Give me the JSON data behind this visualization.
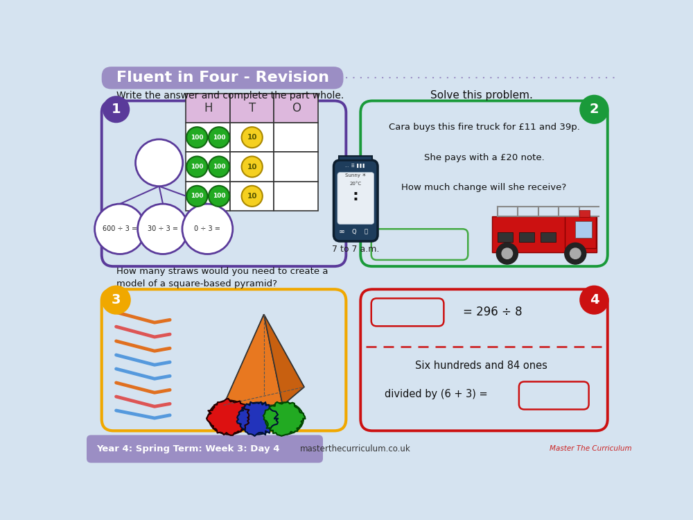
{
  "bg_color": "#d5e3f0",
  "title": "Fluent in Four - Revision",
  "title_bg": "#9b8ec4",
  "title_color": "white",
  "footer_label": "Year 4: Spring Term: Week 3: Day 4",
  "footer_bg": "#9b8ec4",
  "footer_color": "white",
  "website": "masterthecurriculum.co.uk",
  "q1_text": "Write the answer and complete the part whole.",
  "q1_hto_headers": [
    "H",
    "T",
    "O"
  ],
  "q1_bubble1": "600 ÷ 3 =",
  "q1_bubble2": "30 ÷ 3 =",
  "q1_bubble3": "0 ÷ 3 =",
  "q2_title": "Solve this problem.",
  "q2_line1": "Cara buys this fire truck for £11 and 39p.",
  "q2_line2": "She pays with a £20 note.",
  "q2_line3": "How much change will she receive?",
  "q3_text1": "How many straws would you need to create a",
  "q3_text2": "model of a square-based pyramid?",
  "q4_eq": "= 296 ÷ 8",
  "q4_text1": "Six hundreds and 84 ones",
  "q4_text2": "divided by (6 + 3) =",
  "dashed_line_color": "#9b8ec4",
  "box1_border": "#5a3a9a",
  "box2_border": "#1a9a3a",
  "box3_border": "#f0a800",
  "box4_border": "#cc1111",
  "green_circle": "#22aa22",
  "yellow_circle": "#f5d020",
  "circle_text": "white",
  "yellow_text": "#555500",
  "straw_colors": [
    "#e07030",
    "#e06060",
    "#e07030",
    "#60aadd",
    "#60aadd",
    "#e07030",
    "#e06060",
    "#60aadd",
    "#60aadd"
  ]
}
